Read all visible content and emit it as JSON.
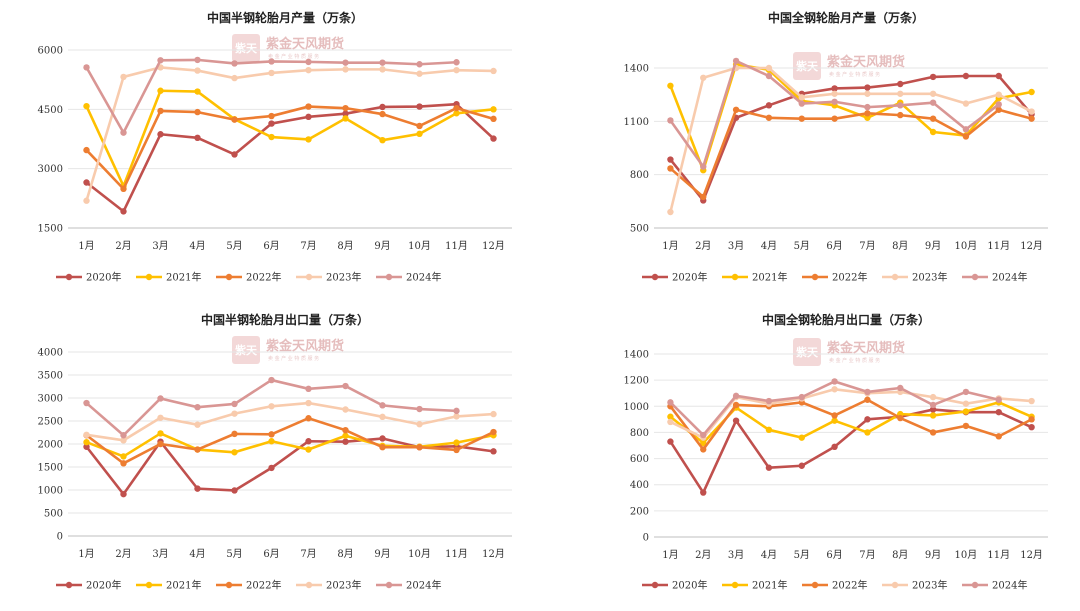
{
  "watermark": {
    "name": "紫金天风期货",
    "sub": "卖 金 产 业   特 质 服 务",
    "seal": "紫天"
  },
  "chart_data": [
    {
      "type": "line",
      "title": "中国半钢轮胎月产量（万条）",
      "categories": [
        "1月",
        "2月",
        "3月",
        "4月",
        "5月",
        "6月",
        "7月",
        "8月",
        "9月",
        "10月",
        "11月",
        "12月"
      ],
      "ylim": [
        1500,
        6000
      ],
      "yticks": [
        1500,
        3000,
        4500,
        6000
      ],
      "grid": true,
      "legend": "bottom",
      "series": [
        {
          "name": "2020年",
          "color": "#c0504d",
          "values": [
            2650,
            1920,
            3870,
            3780,
            3360,
            4140,
            4310,
            4390,
            4560,
            4570,
            4630,
            3760
          ]
        },
        {
          "name": "2021年",
          "color": "#ffc000",
          "values": [
            4580,
            2560,
            4970,
            4950,
            4250,
            3800,
            3740,
            4270,
            3720,
            3880,
            4400,
            4500
          ]
        },
        {
          "name": "2022年",
          "color": "#ed7d31",
          "values": [
            3470,
            2490,
            4460,
            4430,
            4240,
            4330,
            4570,
            4530,
            4380,
            4080,
            4530,
            4260
          ]
        },
        {
          "name": "2023年",
          "color": "#f8cbad",
          "values": [
            2190,
            5320,
            5560,
            5480,
            5290,
            5420,
            5490,
            5510,
            5510,
            5400,
            5490,
            5470
          ]
        },
        {
          "name": "2024年",
          "color": "#d99694",
          "values": [
            5560,
            3910,
            5740,
            5750,
            5660,
            5710,
            5700,
            5680,
            5680,
            5640,
            5690,
            null
          ]
        }
      ]
    },
    {
      "type": "line",
      "title": "中国全钢轮胎月产量（万条）",
      "categories": [
        "1月",
        "2月",
        "3月",
        "4月",
        "5月",
        "6月",
        "7月",
        "8月",
        "9月",
        "10月",
        "11月",
        "12月"
      ],
      "ylim": [
        500,
        1400
      ],
      "yticks": [
        500,
        800,
        1100,
        1400
      ],
      "grid": true,
      "legend": "bottom",
      "series": [
        {
          "name": "2020年",
          "color": "#c0504d",
          "values": [
            885,
            655,
            1120,
            1190,
            1255,
            1285,
            1290,
            1310,
            1350,
            1355,
            1355,
            1140
          ]
        },
        {
          "name": "2021年",
          "color": "#ffc000",
          "values": [
            1300,
            825,
            1420,
            1390,
            1215,
            1190,
            1120,
            1205,
            1040,
            1020,
            1230,
            1265
          ]
        },
        {
          "name": "2022年",
          "color": "#ed7d31",
          "values": [
            835,
            675,
            1165,
            1120,
            1115,
            1115,
            1145,
            1135,
            1115,
            1015,
            1165,
            1115
          ]
        },
        {
          "name": "2023年",
          "color": "#f8cbad",
          "values": [
            590,
            1345,
            1400,
            1400,
            1235,
            1255,
            1255,
            1255,
            1255,
            1200,
            1250,
            1155
          ]
        },
        {
          "name": "2024年",
          "color": "#d99694",
          "values": [
            1105,
            845,
            1440,
            1355,
            1200,
            1210,
            1180,
            1190,
            1205,
            1055,
            1195,
            null
          ]
        }
      ]
    },
    {
      "type": "line",
      "title": "中国半钢轮胎月出口量（万条）",
      "categories": [
        "1月",
        "2月",
        "3月",
        "4月",
        "5月",
        "6月",
        "7月",
        "8月",
        "9月",
        "10月",
        "11月",
        "12月"
      ],
      "ylim": [
        0,
        4000
      ],
      "yticks": [
        0,
        500,
        1000,
        1500,
        2000,
        2500,
        3000,
        3500,
        4000
      ],
      "grid": true,
      "legend": "bottom",
      "series": [
        {
          "name": "2020年",
          "color": "#c0504d",
          "values": [
            1940,
            910,
            2050,
            1030,
            990,
            1480,
            2060,
            2050,
            2120,
            1930,
            1950,
            1840
          ]
        },
        {
          "name": "2021年",
          "color": "#ffc000",
          "values": [
            2040,
            1730,
            2230,
            1880,
            1820,
            2060,
            1880,
            2180,
            1960,
            1940,
            2030,
            2190
          ]
        },
        {
          "name": "2022年",
          "color": "#ed7d31",
          "values": [
            2190,
            1580,
            2000,
            1880,
            2220,
            2210,
            2560,
            2300,
            1930,
            1930,
            1870,
            2260
          ]
        },
        {
          "name": "2023年",
          "color": "#f8cbad",
          "values": [
            2200,
            2080,
            2570,
            2420,
            2660,
            2820,
            2890,
            2750,
            2590,
            2430,
            2600,
            2650
          ]
        },
        {
          "name": "2024年",
          "color": "#d99694",
          "values": [
            2890,
            2190,
            2990,
            2800,
            2870,
            3390,
            3200,
            3260,
            2840,
            2760,
            2720,
            null
          ]
        }
      ]
    },
    {
      "type": "line",
      "title": "中国全钢轮胎月出口量（万条）",
      "categories": [
        "1月",
        "2月",
        "3月",
        "4月",
        "5月",
        "6月",
        "7月",
        "8月",
        "9月",
        "10月",
        "11月",
        "12月"
      ],
      "ylim": [
        0,
        1400
      ],
      "yticks": [
        0,
        200,
        400,
        600,
        800,
        1000,
        1200,
        1400
      ],
      "grid": true,
      "legend": "bottom",
      "series": [
        {
          "name": "2020年",
          "color": "#c0504d",
          "values": [
            730,
            340,
            890,
            530,
            545,
            690,
            900,
            920,
            975,
            955,
            955,
            840
          ]
        },
        {
          "name": "2021年",
          "color": "#ffc000",
          "values": [
            920,
            720,
            990,
            820,
            760,
            890,
            800,
            940,
            930,
            960,
            1030,
            920
          ]
        },
        {
          "name": "2022年",
          "color": "#ed7d31",
          "values": [
            1000,
            670,
            1010,
            1000,
            1030,
            930,
            1050,
            910,
            800,
            850,
            770,
            900
          ]
        },
        {
          "name": "2023年",
          "color": "#f8cbad",
          "values": [
            880,
            760,
            1070,
            1020,
            1060,
            1130,
            1100,
            1110,
            1070,
            1020,
            1060,
            1040
          ]
        },
        {
          "name": "2024年",
          "color": "#d99694",
          "values": [
            1030,
            780,
            1080,
            1040,
            1070,
            1190,
            1110,
            1140,
            1010,
            1110,
            1050,
            null
          ]
        }
      ]
    }
  ]
}
